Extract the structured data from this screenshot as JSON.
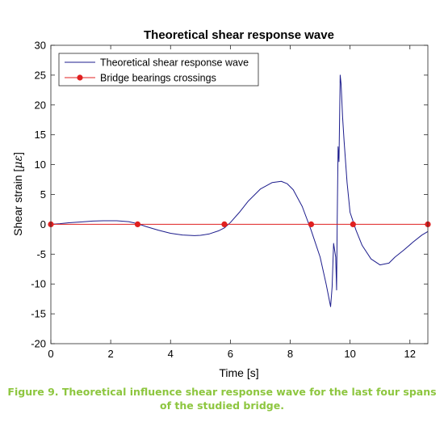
{
  "caption": {
    "line1": "Figure 9. Theoretical influence shear response wave for the last four spans",
    "line2": "of the studied bridge.",
    "color": "#8dc63f"
  },
  "chart_data": {
    "type": "line",
    "title": "Theoretical shear response wave",
    "xlabel": "Time [s]",
    "ylabel": "Shear strain [",
    "ylabel_symbol": "με",
    "ylabel_close": "]",
    "xlim": [
      0,
      12.6
    ],
    "ylim": [
      -20,
      30
    ],
    "xticks": [
      0,
      2,
      4,
      6,
      8,
      10,
      12
    ],
    "yticks": [
      -20,
      -15,
      -10,
      -5,
      0,
      5,
      10,
      15,
      20,
      25,
      30
    ],
    "grid": false,
    "legend_position": "top-left",
    "series": [
      {
        "name": "Theoretical shear response wave",
        "color": "#1c1c8c",
        "style": "line",
        "x": [
          0,
          0.3,
          0.6,
          1.0,
          1.4,
          1.8,
          2.2,
          2.6,
          2.9,
          3.2,
          3.6,
          4.0,
          4.4,
          4.8,
          5.0,
          5.3,
          5.6,
          5.8,
          6.0,
          6.3,
          6.6,
          7.0,
          7.4,
          7.7,
          7.9,
          8.1,
          8.4,
          8.7,
          9.0,
          9.2,
          9.35,
          9.4,
          9.45,
          9.52,
          9.55,
          9.57,
          9.6,
          9.63,
          9.67,
          9.7,
          9.75,
          9.8,
          9.9,
          10.0,
          10.1,
          10.2,
          10.4,
          10.7,
          11.0,
          11.3,
          11.5,
          11.8,
          12.1,
          12.4,
          12.6
        ],
        "y": [
          0,
          0.1,
          0.25,
          0.4,
          0.55,
          0.6,
          0.6,
          0.45,
          0.1,
          -0.4,
          -1.0,
          -1.5,
          -1.8,
          -1.9,
          -1.85,
          -1.6,
          -1.1,
          -0.6,
          0.3,
          2.0,
          3.9,
          5.9,
          7.0,
          7.2,
          6.8,
          5.8,
          3.0,
          -1.0,
          -5.5,
          -10.0,
          -13.8,
          -10.5,
          -3.2,
          -5.5,
          -11.0,
          0.5,
          13.0,
          10.5,
          25.0,
          23.5,
          18.0,
          14.0,
          7.0,
          2.0,
          0.5,
          -1.0,
          -3.5,
          -5.8,
          -6.8,
          -6.5,
          -5.5,
          -4.3,
          -3.0,
          -1.8,
          -1.2
        ]
      },
      {
        "name": "Bridge bearings crossings",
        "color": "#e02020",
        "style": "line-markers",
        "x": [
          0,
          2.9,
          5.8,
          8.7,
          10.1,
          12.6
        ],
        "y": [
          0,
          0,
          0,
          0,
          0,
          0
        ]
      }
    ]
  }
}
